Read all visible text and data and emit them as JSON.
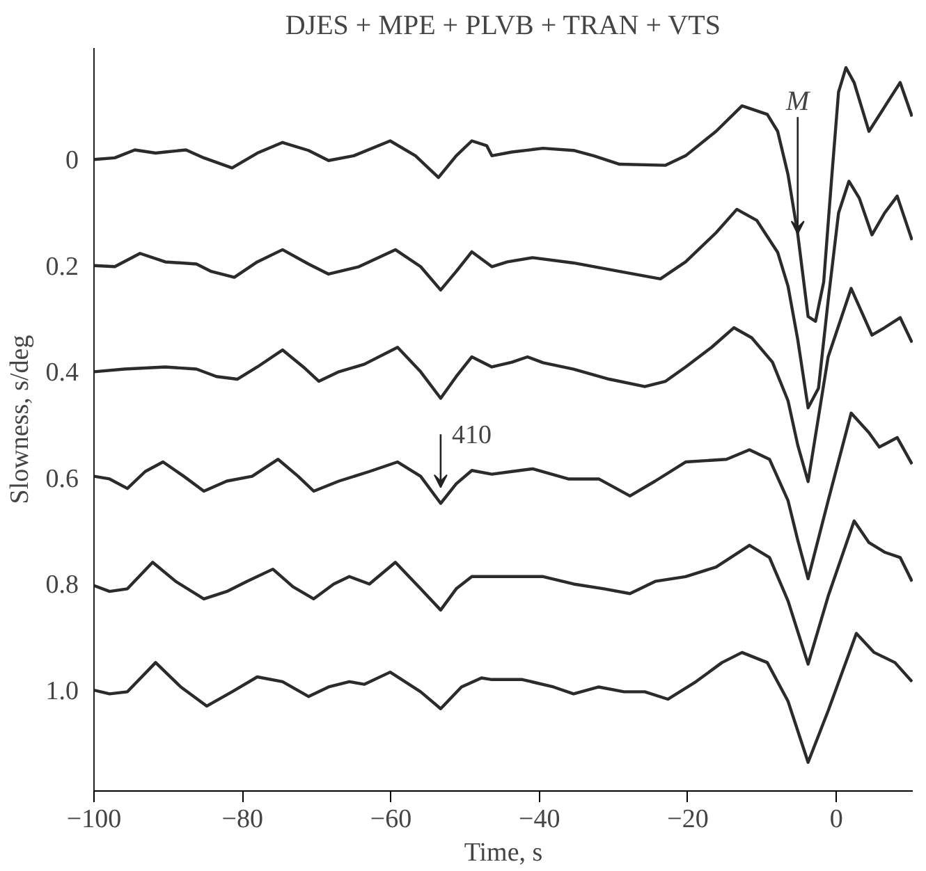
{
  "chart_data": {
    "type": "line",
    "title": "DJES + MPE + PLVB + TRAN + VTS",
    "xlabel": "Time, s",
    "ylabel": "Slowness, s/deg",
    "xlim": [
      -100,
      10.3
    ],
    "ylim": [
      1.19,
      -0.21
    ],
    "xticks": [
      {
        "value": -100,
        "label": "−100"
      },
      {
        "value": -80,
        "label": "−80"
      },
      {
        "value": -60,
        "label": "−60"
      },
      {
        "value": -40,
        "label": "−40"
      },
      {
        "value": -20,
        "label": "−20"
      },
      0
    ],
    "yticks": [
      0,
      0.2,
      0.4,
      0.6,
      0.8,
      {
        "value": 1,
        "label": "1.0"
      }
    ],
    "grid": false,
    "marker": "none",
    "line_style": "solid",
    "annotations": [
      {
        "text": "M",
        "x": -5.2,
        "y": 0.14
      },
      {
        "text": "410",
        "x": -53.3,
        "y": 0.648
      }
    ],
    "series": [
      {
        "color": "#2b2b2b",
        "x": [
          -100,
          -97.2,
          -94.5,
          -91.7,
          -90.4,
          -87.6,
          -85.2,
          -81.4,
          -78.0,
          -74.6,
          -71.1,
          -68.4,
          -65.0,
          -60.1,
          -56.7,
          -53.6,
          -51.2,
          -49.1,
          -47.1,
          -46.4,
          -43.7,
          -39.5,
          -35.4,
          -32.7,
          -29.2,
          -23.0,
          -20.3,
          -16.2,
          -12.7,
          -9.3,
          -7.9,
          -6.5,
          -5.2,
          -3.8,
          -2.8,
          -1.7,
          -0.7,
          0.3,
          1.3,
          2.4,
          4.4,
          6.5,
          8.6,
          10.2
        ],
        "values": [
          0,
          -0.003,
          -0.018,
          -0.012,
          -0.014,
          -0.018,
          -0.003,
          0.016,
          -0.012,
          -0.032,
          -0.017,
          0.002,
          -0.007,
          -0.035,
          -0.007,
          0.034,
          -0.007,
          -0.035,
          -0.026,
          -0.007,
          -0.014,
          -0.021,
          -0.017,
          -0.007,
          0.009,
          0.011,
          -0.007,
          -0.053,
          -0.101,
          -0.085,
          -0.053,
          0.029,
          0.14,
          0.296,
          0.305,
          0.231,
          0.048,
          -0.127,
          -0.173,
          -0.145,
          -0.053,
          -0.099,
          -0.145,
          -0.081
        ]
      },
      {
        "color": "#2b2b2b",
        "x": [
          -100,
          -97.2,
          -93.8,
          -90.4,
          -86.2,
          -84.2,
          -81.1,
          -78.0,
          -74.6,
          -71.1,
          -68.4,
          -64.3,
          -59.4,
          -56.0,
          -53.3,
          -51.2,
          -49.1,
          -46.4,
          -44.3,
          -40.9,
          -35.4,
          -29.2,
          -23.7,
          -20.3,
          -16.2,
          -13.4,
          -10.7,
          -7.9,
          -6.5,
          -5.2,
          -3.8,
          -2.4,
          -1.1,
          0.3,
          1.7,
          3.1,
          4.8,
          6.5,
          8.2,
          10.2
        ],
        "values": [
          0.2,
          0.202,
          0.177,
          0.193,
          0.197,
          0.211,
          0.222,
          0.193,
          0.17,
          0.197,
          0.216,
          0.202,
          0.17,
          0.202,
          0.246,
          0.211,
          0.174,
          0.202,
          0.193,
          0.185,
          0.195,
          0.211,
          0.225,
          0.193,
          0.138,
          0.094,
          0.115,
          0.175,
          0.239,
          0.339,
          0.468,
          0.431,
          0.266,
          0.101,
          0.041,
          0.073,
          0.142,
          0.101,
          0.069,
          0.152
        ]
      },
      {
        "color": "#2b2b2b",
        "x": [
          -100,
          -95.9,
          -90.4,
          -86.2,
          -83.5,
          -80.7,
          -78.0,
          -74.6,
          -71.8,
          -69.7,
          -67.0,
          -63.6,
          -59.1,
          -56.0,
          -53.3,
          -51.2,
          -49.1,
          -46.4,
          -43.7,
          -41.6,
          -39.5,
          -35.4,
          -30.6,
          -25.8,
          -23.0,
          -20.3,
          -16.8,
          -13.8,
          -11.4,
          -8.6,
          -6.5,
          -5.2,
          -3.8,
          -1.1,
          2.0,
          4.8,
          6.5,
          8.6,
          10.2
        ],
        "values": [
          0.4,
          0.395,
          0.391,
          0.395,
          0.409,
          0.414,
          0.391,
          0.359,
          0.391,
          0.418,
          0.4,
          0.386,
          0.354,
          0.4,
          0.45,
          0.409,
          0.372,
          0.391,
          0.382,
          0.372,
          0.383,
          0.395,
          0.414,
          0.428,
          0.418,
          0.391,
          0.354,
          0.317,
          0.336,
          0.382,
          0.455,
          0.538,
          0.607,
          0.372,
          0.243,
          0.331,
          0.317,
          0.298,
          0.345
        ]
      },
      {
        "color": "#2b2b2b",
        "x": [
          -100,
          -97.9,
          -95.5,
          -93.1,
          -90.7,
          -87.9,
          -85.2,
          -82.1,
          -78.7,
          -75.2,
          -72.5,
          -70.4,
          -67.0,
          -62.9,
          -59.1,
          -56.0,
          -53.3,
          -51.2,
          -49.1,
          -46.4,
          -43.7,
          -40.9,
          -36.1,
          -32.0,
          -27.8,
          -24.4,
          -20.3,
          -14.8,
          -11.7,
          -9.0,
          -6.5,
          -5.2,
          -3.8,
          -1.1,
          2.0,
          4.4,
          5.8,
          8.2,
          10.2
        ],
        "values": [
          0.597,
          0.602,
          0.62,
          0.588,
          0.57,
          0.597,
          0.625,
          0.606,
          0.597,
          0.565,
          0.597,
          0.625,
          0.606,
          0.588,
          0.57,
          0.597,
          0.648,
          0.611,
          0.586,
          0.593,
          0.588,
          0.583,
          0.602,
          0.602,
          0.634,
          0.606,
          0.57,
          0.565,
          0.547,
          0.565,
          0.643,
          0.717,
          0.79,
          0.643,
          0.478,
          0.515,
          0.542,
          0.524,
          0.574
        ]
      },
      {
        "color": "#2b2b2b",
        "x": [
          -100,
          -97.9,
          -95.5,
          -92.1,
          -89.0,
          -85.2,
          -82.1,
          -79.4,
          -75.9,
          -73.2,
          -70.4,
          -67.7,
          -65.6,
          -62.9,
          -59.4,
          -56.0,
          -53.3,
          -51.2,
          -49.1,
          -46.4,
          -39.5,
          -35.4,
          -31.3,
          -27.8,
          -24.4,
          -20.3,
          -16.2,
          -11.7,
          -9.0,
          -6.5,
          -3.8,
          -1.1,
          2.4,
          4.4,
          6.5,
          8.6,
          10.2
        ],
        "values": [
          0.803,
          0.814,
          0.809,
          0.759,
          0.795,
          0.828,
          0.814,
          0.795,
          0.772,
          0.805,
          0.828,
          0.8,
          0.786,
          0.8,
          0.759,
          0.809,
          0.849,
          0.809,
          0.786,
          0.786,
          0.786,
          0.8,
          0.809,
          0.818,
          0.795,
          0.786,
          0.768,
          0.727,
          0.75,
          0.832,
          0.951,
          0.823,
          0.681,
          0.722,
          0.74,
          0.75,
          0.795
        ]
      },
      {
        "color": "#2b2b2b",
        "x": [
          -100,
          -97.9,
          -95.5,
          -91.7,
          -88.3,
          -84.8,
          -81.4,
          -78.0,
          -74.6,
          -71.1,
          -68.4,
          -65.6,
          -63.6,
          -60.1,
          -56.0,
          -53.3,
          -50.5,
          -47.8,
          -46.4,
          -42.3,
          -38.1,
          -35.4,
          -32.0,
          -28.6,
          -25.8,
          -22.7,
          -18.9,
          -15.4,
          -12.7,
          -9.3,
          -6.5,
          -3.8,
          -1.1,
          2.7,
          5.1,
          7.9,
          10.2
        ],
        "values": [
          1,
          1.007,
          1.003,
          0.948,
          0.994,
          1.03,
          1.003,
          0.975,
          0.984,
          1.012,
          0.994,
          0.984,
          0.989,
          0.966,
          1.003,
          1.035,
          0.994,
          0.977,
          0.98,
          0.98,
          0.994,
          1.007,
          0.994,
          1.003,
          1.003,
          1.017,
          0.984,
          0.948,
          0.929,
          0.948,
          1.021,
          1.136,
          1.039,
          0.893,
          0.929,
          0.948,
          0.984
        ]
      }
    ]
  }
}
